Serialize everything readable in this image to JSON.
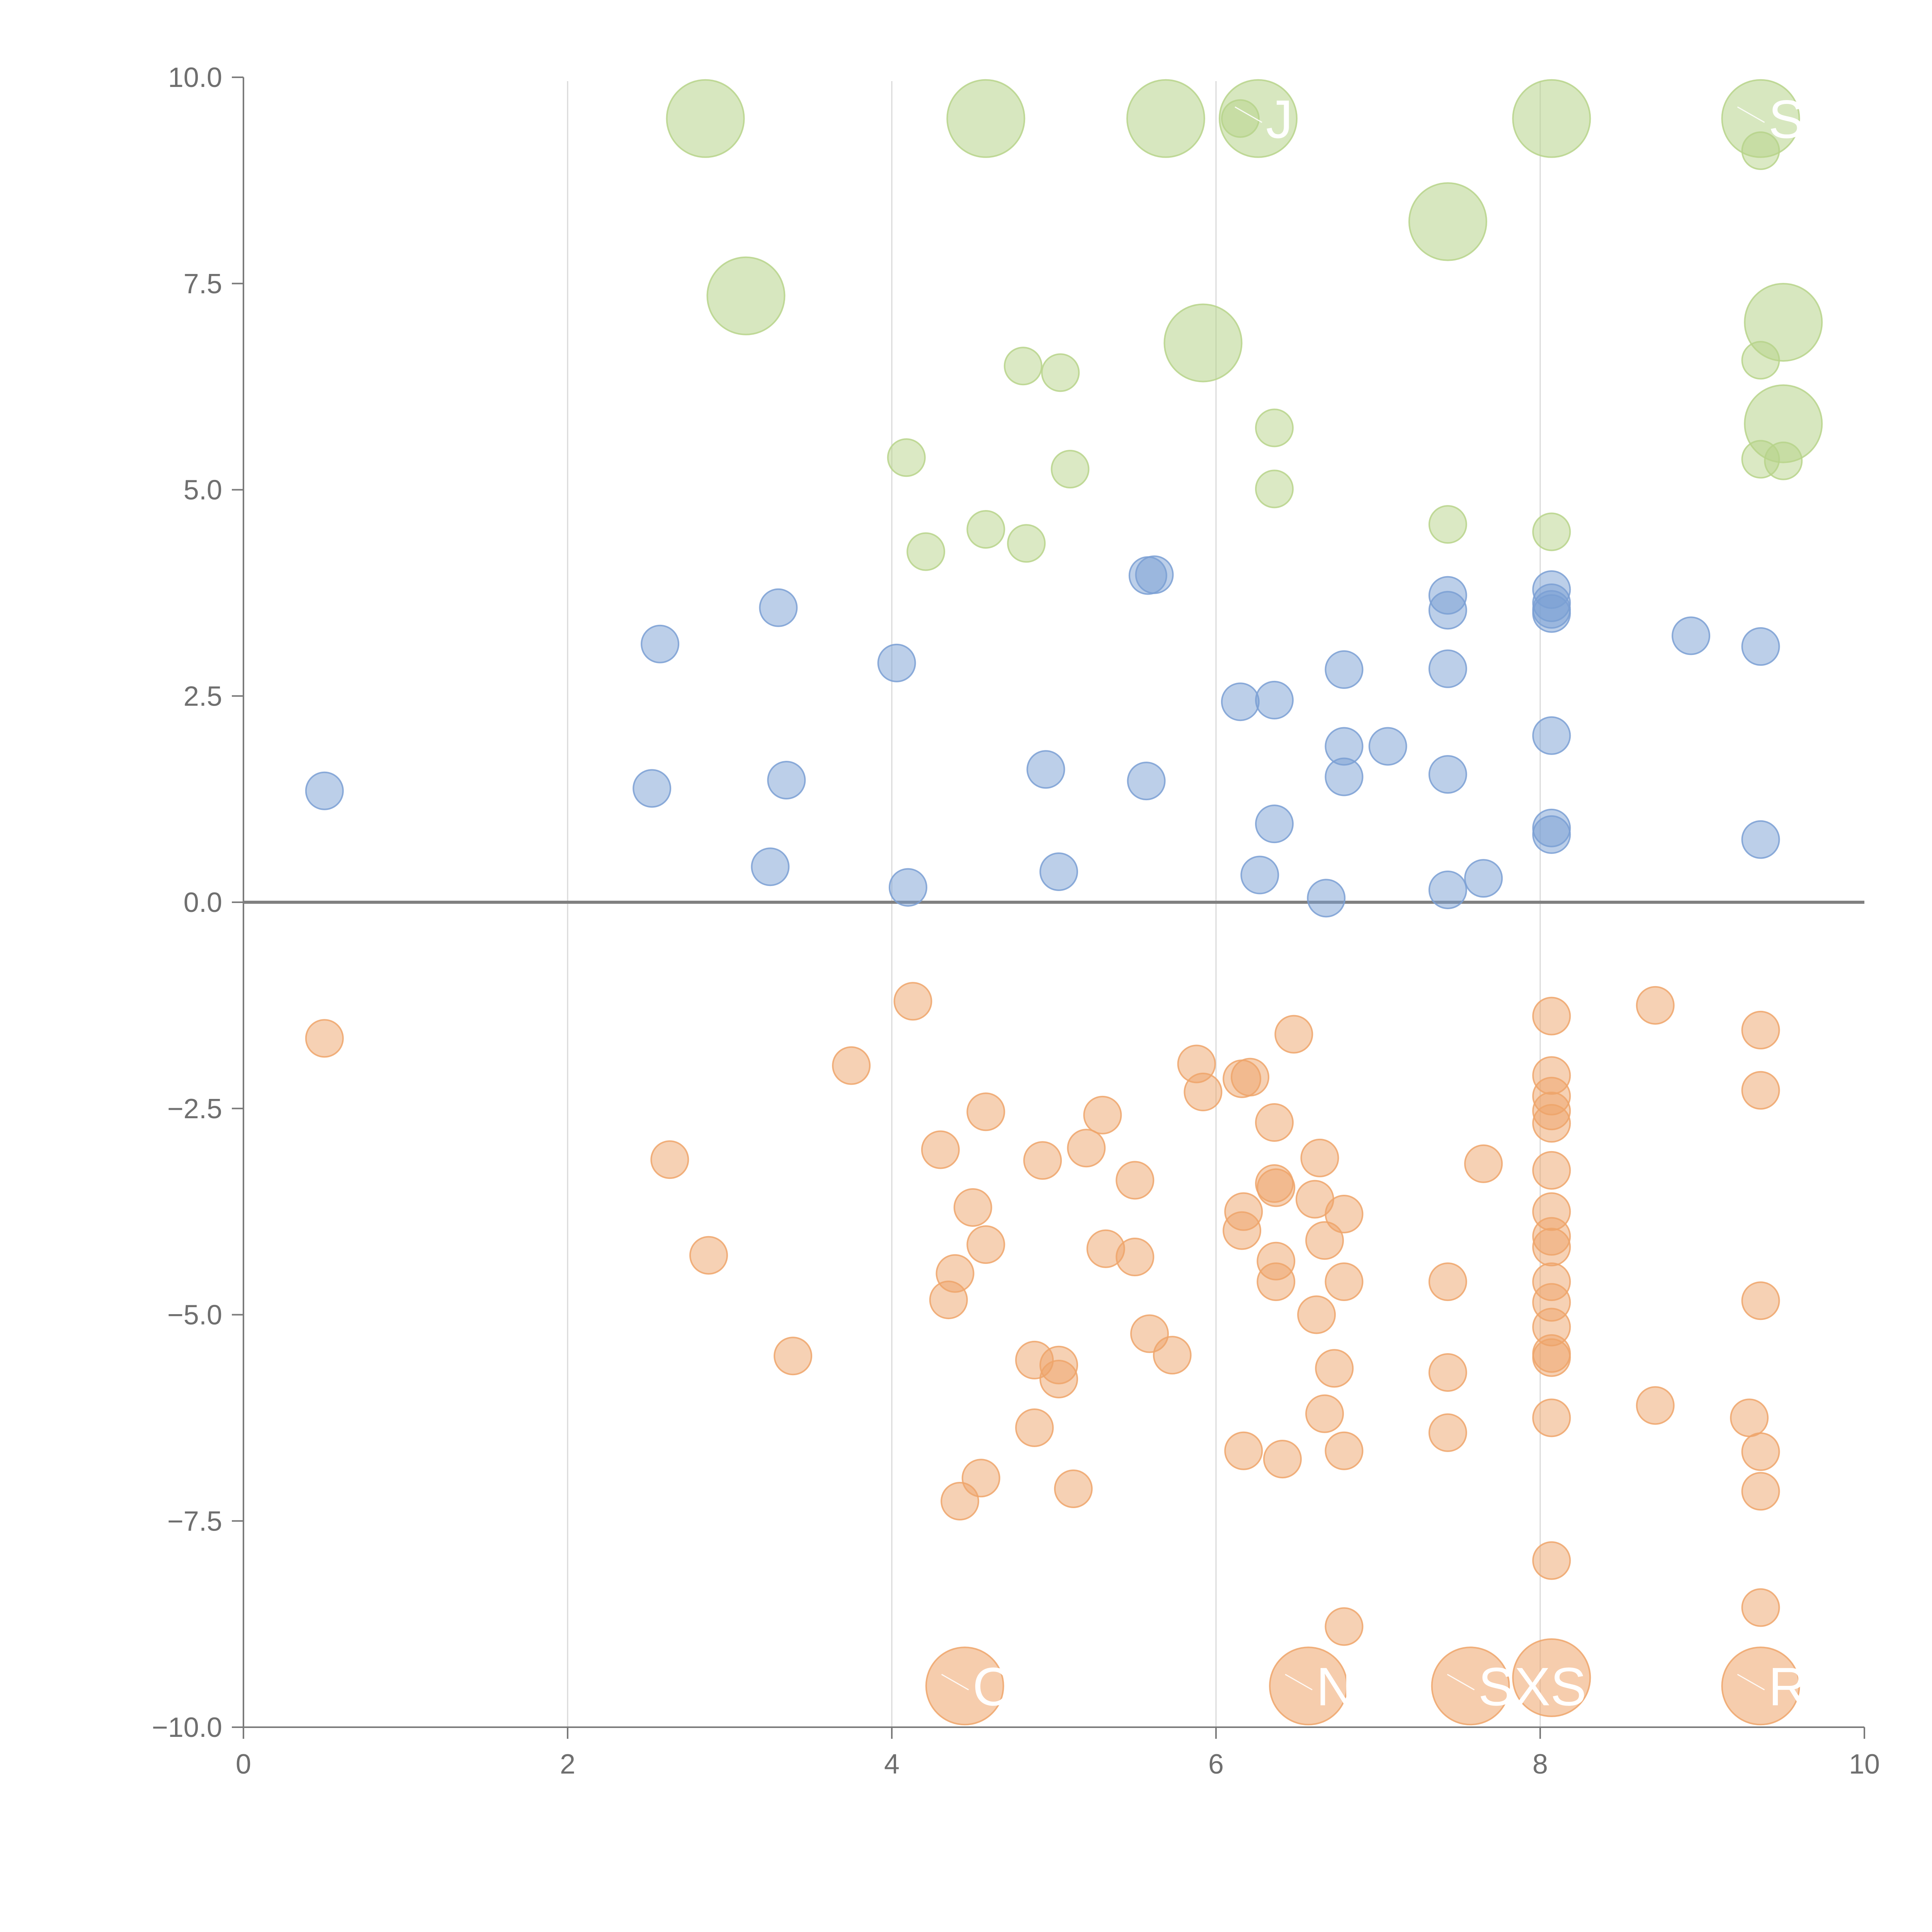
{
  "chart_data": {
    "type": "scatter",
    "title": "",
    "xlabel": "",
    "ylabel": "",
    "xlim": [
      0,
      10
    ],
    "ylim": [
      -10,
      10
    ],
    "grid": "vertical",
    "x_ticks": [
      0,
      2,
      4,
      6,
      8,
      10
    ],
    "y_ticks": [
      -10,
      -7.5,
      -5,
      -2.5,
      0,
      2.5,
      5,
      7.5,
      10
    ],
    "x_tick_labels": [
      "0",
      "2",
      "4",
      "6",
      "8",
      "10"
    ],
    "y_tick_labels": [
      "−10.0",
      "−7.5",
      "−5.0",
      "−2.5",
      "0.0",
      "2.5",
      "5.0",
      "7.5",
      "10.0"
    ],
    "colors": {
      "positive": "#7a9fd4",
      "negative": "#eea46a",
      "significant": "#b7d48a",
      "axis": "#7a7a7a",
      "zero_line": "#808080"
    },
    "series": [
      {
        "name": "positive",
        "points": [
          [
            0.5,
            1.35
          ],
          [
            2.52,
            1.38
          ],
          [
            2.57,
            3.13
          ],
          [
            3.25,
            0.43
          ],
          [
            3.3,
            3.57
          ],
          [
            3.35,
            1.48
          ],
          [
            4.03,
            2.9
          ],
          [
            4.1,
            0.18
          ],
          [
            4.95,
            1.61
          ],
          [
            5.03,
            0.37
          ],
          [
            5.58,
            3.96
          ],
          [
            5.62,
            3.97
          ],
          [
            5.57,
            1.47
          ],
          [
            6.15,
            2.43
          ],
          [
            6.27,
            0.33
          ],
          [
            6.36,
            2.45
          ],
          [
            6.36,
            0.95
          ],
          [
            6.68,
            0.05
          ],
          [
            6.79,
            2.82
          ],
          [
            6.79,
            1.89
          ],
          [
            6.79,
            1.52
          ],
          [
            7.06,
            1.89
          ],
          [
            7.43,
            3.72
          ],
          [
            7.43,
            3.54
          ],
          [
            7.43,
            2.83
          ],
          [
            7.43,
            1.55
          ],
          [
            7.43,
            0.15
          ],
          [
            7.65,
            0.29
          ],
          [
            8.07,
            3.79
          ],
          [
            8.07,
            3.63
          ],
          [
            8.07,
            3.55
          ],
          [
            8.07,
            3.5
          ],
          [
            8.07,
            2.02
          ],
          [
            8.07,
            0.9
          ],
          [
            8.07,
            0.82
          ],
          [
            8.93,
            3.23
          ],
          [
            9.36,
            3.1
          ],
          [
            9.36,
            0.76
          ]
        ]
      },
      {
        "name": "negative",
        "points": [
          [
            0.5,
            -1.65
          ],
          [
            2.63,
            -3.12
          ],
          [
            2.87,
            -4.28
          ],
          [
            3.39,
            -5.5
          ],
          [
            3.75,
            -1.98
          ],
          [
            4.13,
            -1.2
          ],
          [
            4.3,
            -3.0
          ],
          [
            4.35,
            -4.82
          ],
          [
            4.39,
            -4.5
          ],
          [
            4.42,
            -7.26
          ],
          [
            4.5,
            -3.7
          ],
          [
            4.55,
            -6.98
          ],
          [
            4.58,
            -2.54
          ],
          [
            4.58,
            -4.15
          ],
          [
            4.88,
            -5.55
          ],
          [
            4.88,
            -6.37
          ],
          [
            4.93,
            -3.13
          ],
          [
            5.03,
            -5.61
          ],
          [
            5.03,
            -5.78
          ],
          [
            5.12,
            -7.11
          ],
          [
            5.2,
            -2.98
          ],
          [
            5.3,
            -2.58
          ],
          [
            5.32,
            -4.2
          ],
          [
            5.5,
            -3.37
          ],
          [
            5.5,
            -4.3
          ],
          [
            5.59,
            -5.23
          ],
          [
            5.73,
            -5.49
          ],
          [
            5.88,
            -1.96
          ],
          [
            5.92,
            -2.3
          ],
          [
            6.16,
            -2.14
          ],
          [
            6.21,
            -2.12
          ],
          [
            6.17,
            -3.75
          ],
          [
            6.16,
            -3.98
          ],
          [
            6.17,
            -6.65
          ],
          [
            6.36,
            -2.67
          ],
          [
            6.36,
            -3.41
          ],
          [
            6.37,
            -3.46
          ],
          [
            6.37,
            -4.35
          ],
          [
            6.37,
            -4.6
          ],
          [
            6.41,
            -6.75
          ],
          [
            6.48,
            -1.6
          ],
          [
            6.61,
            -3.6
          ],
          [
            6.62,
            -5.0
          ],
          [
            6.64,
            -3.1
          ],
          [
            6.67,
            -4.1
          ],
          [
            6.67,
            -6.2
          ],
          [
            6.73,
            -5.65
          ],
          [
            6.79,
            -3.78
          ],
          [
            6.79,
            -4.6
          ],
          [
            6.79,
            -6.65
          ],
          [
            6.79,
            -8.78
          ],
          [
            7.43,
            -4.6
          ],
          [
            7.43,
            -5.7
          ],
          [
            7.43,
            -6.43
          ],
          [
            7.65,
            -3.17
          ],
          [
            8.07,
            -1.38
          ],
          [
            8.07,
            -2.1
          ],
          [
            8.07,
            -2.35
          ],
          [
            8.07,
            -2.53
          ],
          [
            8.07,
            -2.68
          ],
          [
            8.07,
            -3.25
          ],
          [
            8.07,
            -3.75
          ],
          [
            8.07,
            -4.05
          ],
          [
            8.07,
            -4.18
          ],
          [
            8.07,
            -4.6
          ],
          [
            8.07,
            -4.85
          ],
          [
            8.07,
            -5.15
          ],
          [
            8.07,
            -5.47
          ],
          [
            8.07,
            -5.52
          ],
          [
            8.07,
            -6.25
          ],
          [
            8.07,
            -7.98
          ],
          [
            8.71,
            -1.25
          ],
          [
            8.71,
            -6.1
          ],
          [
            9.29,
            -6.25
          ],
          [
            9.36,
            -1.55
          ],
          [
            9.36,
            -2.28
          ],
          [
            9.36,
            -4.83
          ],
          [
            9.36,
            -6.66
          ],
          [
            9.36,
            -7.14
          ],
          [
            9.36,
            -8.55
          ]
        ]
      },
      {
        "name": "significant",
        "points": [
          [
            4.09,
            5.39
          ],
          [
            4.21,
            4.25
          ],
          [
            4.58,
            4.52
          ],
          [
            4.81,
            6.5
          ],
          [
            4.83,
            4.35
          ],
          [
            5.04,
            6.42
          ],
          [
            5.1,
            5.25
          ],
          [
            6.15,
            9.5
          ],
          [
            6.36,
            5.75
          ],
          [
            6.36,
            5.01
          ],
          [
            7.43,
            4.58
          ],
          [
            8.07,
            4.49
          ],
          [
            9.36,
            9.11
          ],
          [
            9.36,
            6.57
          ],
          [
            9.36,
            5.37
          ],
          [
            9.5,
            5.35
          ]
        ]
      }
    ],
    "labeled_points": [
      {
        "label": "",
        "x": 2.85,
        "y": 9.5,
        "group": "significant"
      },
      {
        "label": "",
        "x": 4.58,
        "y": 9.5,
        "group": "significant"
      },
      {
        "label": "",
        "x": 5.69,
        "y": 9.5,
        "group": "significant"
      },
      {
        "label": "J",
        "x": 6.26,
        "y": 9.5,
        "group": "significant"
      },
      {
        "label": "",
        "x": 8.07,
        "y": 9.5,
        "group": "significant"
      },
      {
        "label": "SJ",
        "x": 9.36,
        "y": 9.5,
        "group": "significant"
      },
      {
        "label": "",
        "x": 7.43,
        "y": 8.25,
        "group": "significant"
      },
      {
        "label": "",
        "x": 3.1,
        "y": 7.35,
        "group": "significant"
      },
      {
        "label": "",
        "x": 9.5,
        "y": 7.03,
        "group": "significant"
      },
      {
        "label": "",
        "x": 5.92,
        "y": 6.78,
        "group": "significant"
      },
      {
        "label": "",
        "x": 9.5,
        "y": 5.8,
        "group": "significant"
      },
      {
        "label": "CV",
        "x": 4.45,
        "y": -9.5,
        "group": "negative"
      },
      {
        "label": "NK",
        "x": 6.57,
        "y": -9.5,
        "group": "negative"
      },
      {
        "label": "SXS",
        "x": 7.57,
        "y": -9.5,
        "group": "negative"
      },
      {
        "label": "",
        "x": 8.07,
        "y": -9.4,
        "group": "negative"
      },
      {
        "label": "RO",
        "x": 9.36,
        "y": -9.5,
        "group": "negative"
      }
    ]
  }
}
